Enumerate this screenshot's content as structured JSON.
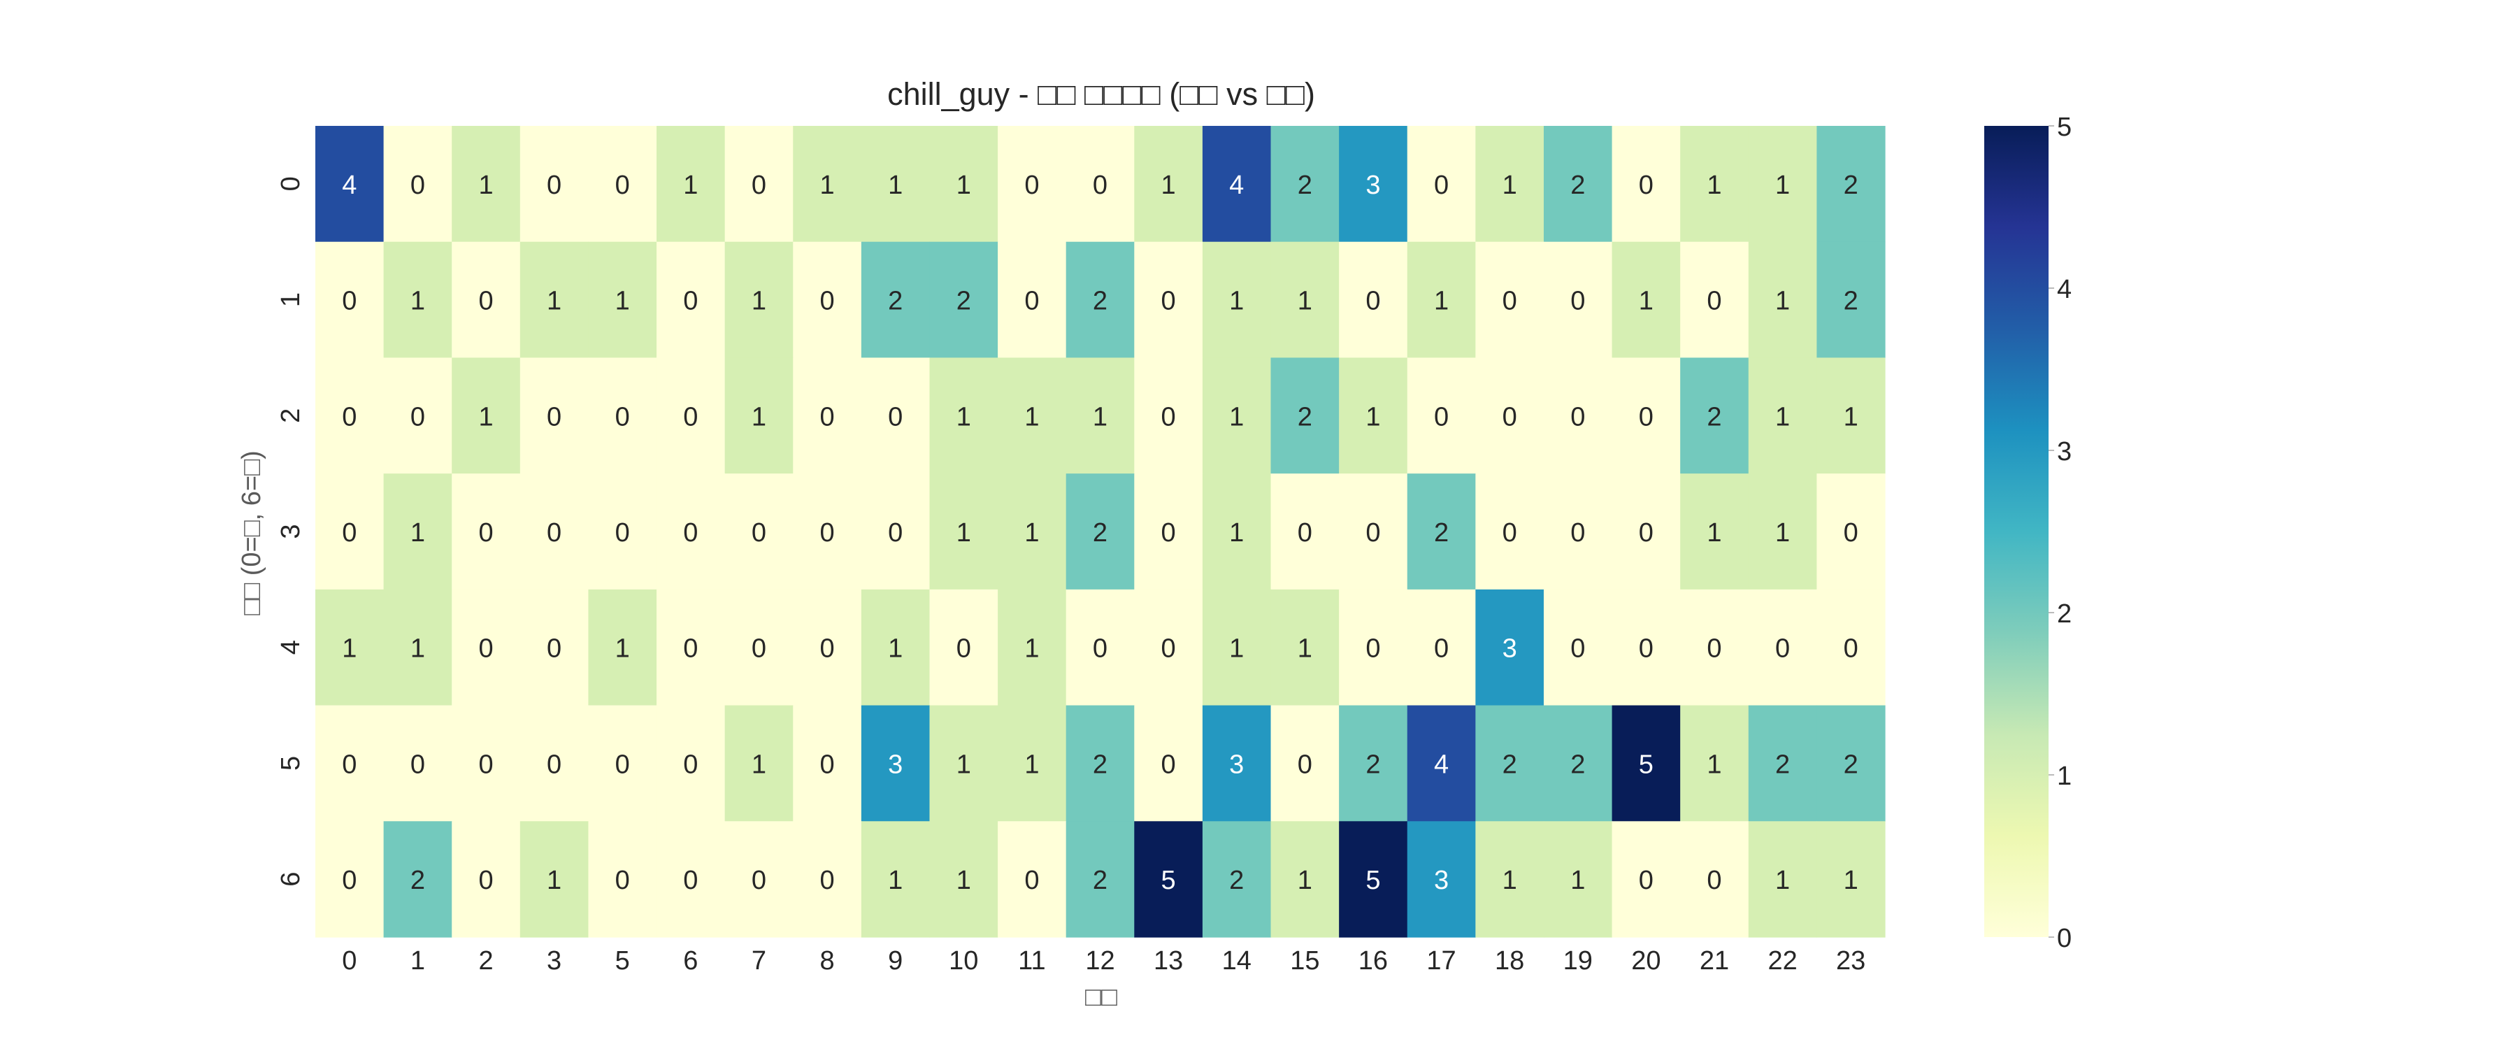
{
  "chart_data": {
    "type": "heatmap",
    "title": "chill_guy - □□ □□□□ (□□ vs □□)",
    "xlabel": "□□",
    "ylabel": "□□ (0=□, 6=□)",
    "x_categories": [
      "0",
      "1",
      "2",
      "3",
      "5",
      "6",
      "7",
      "8",
      "9",
      "10",
      "11",
      "12",
      "13",
      "14",
      "15",
      "16",
      "17",
      "18",
      "19",
      "20",
      "21",
      "22",
      "23"
    ],
    "y_categories": [
      "0",
      "1",
      "2",
      "3",
      "4",
      "5",
      "6"
    ],
    "values": [
      [
        4,
        0,
        1,
        0,
        0,
        1,
        0,
        1,
        1,
        1,
        0,
        0,
        1,
        4,
        2,
        3,
        0,
        1,
        2,
        0,
        1,
        1,
        2
      ],
      [
        0,
        1,
        0,
        1,
        1,
        0,
        1,
        0,
        2,
        2,
        0,
        2,
        0,
        1,
        1,
        0,
        1,
        0,
        0,
        1,
        0,
        1,
        2
      ],
      [
        0,
        0,
        1,
        0,
        0,
        0,
        1,
        0,
        0,
        1,
        1,
        1,
        0,
        1,
        2,
        1,
        0,
        0,
        0,
        0,
        2,
        1,
        1
      ],
      [
        0,
        1,
        0,
        0,
        0,
        0,
        0,
        0,
        0,
        1,
        1,
        2,
        0,
        1,
        0,
        0,
        2,
        0,
        0,
        0,
        1,
        1,
        0
      ],
      [
        1,
        1,
        0,
        0,
        1,
        0,
        0,
        0,
        1,
        0,
        1,
        0,
        0,
        1,
        1,
        0,
        0,
        3,
        0,
        0,
        0,
        0,
        0
      ],
      [
        0,
        0,
        0,
        0,
        0,
        0,
        1,
        0,
        3,
        1,
        1,
        2,
        0,
        3,
        0,
        2,
        4,
        2,
        2,
        5,
        1,
        2,
        2
      ],
      [
        0,
        2,
        0,
        1,
        0,
        0,
        0,
        0,
        1,
        1,
        0,
        2,
        5,
        2,
        1,
        5,
        3,
        1,
        1,
        0,
        0,
        1,
        1
      ]
    ],
    "value_range": [
      0,
      5
    ],
    "colorbar_ticks": [
      0,
      1,
      2,
      3,
      4,
      5
    ],
    "colormap": "YlGnBu",
    "annotated": true,
    "grid": false,
    "legend": "colorbar-right"
  },
  "colors": {
    "v0": "#ffffd9",
    "v1": "#d6efb3",
    "v2": "#73c9bd",
    "v3": "#2498c1",
    "v4": "#234da0",
    "v5": "#081d58",
    "text": "#262626",
    "label_gray": "#5a5a5a"
  }
}
